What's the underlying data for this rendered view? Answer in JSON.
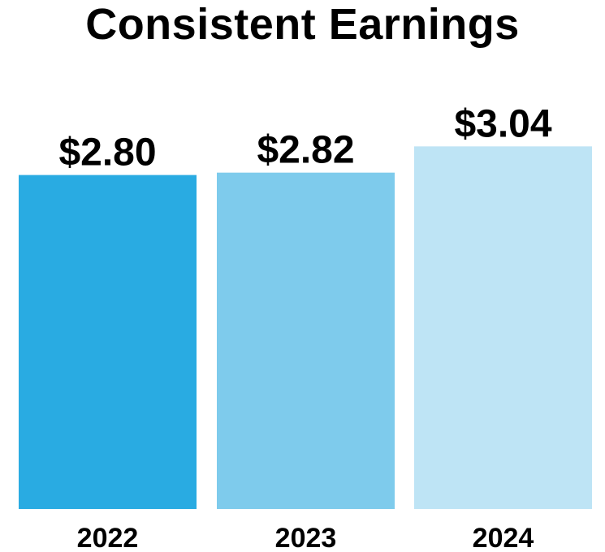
{
  "chart_data": {
    "type": "bar",
    "title": "Consistent Earnings",
    "categories": [
      "2022",
      "2023",
      "2024"
    ],
    "values": [
      2.8,
      2.82,
      3.04
    ],
    "data_labels": [
      "$2.80",
      "$2.82",
      "$3.04"
    ],
    "colors": [
      "#29abe2",
      "#7ecbec",
      "#bee4f5"
    ],
    "xlabel": "",
    "ylabel": "",
    "grid": false,
    "legend": "none"
  }
}
